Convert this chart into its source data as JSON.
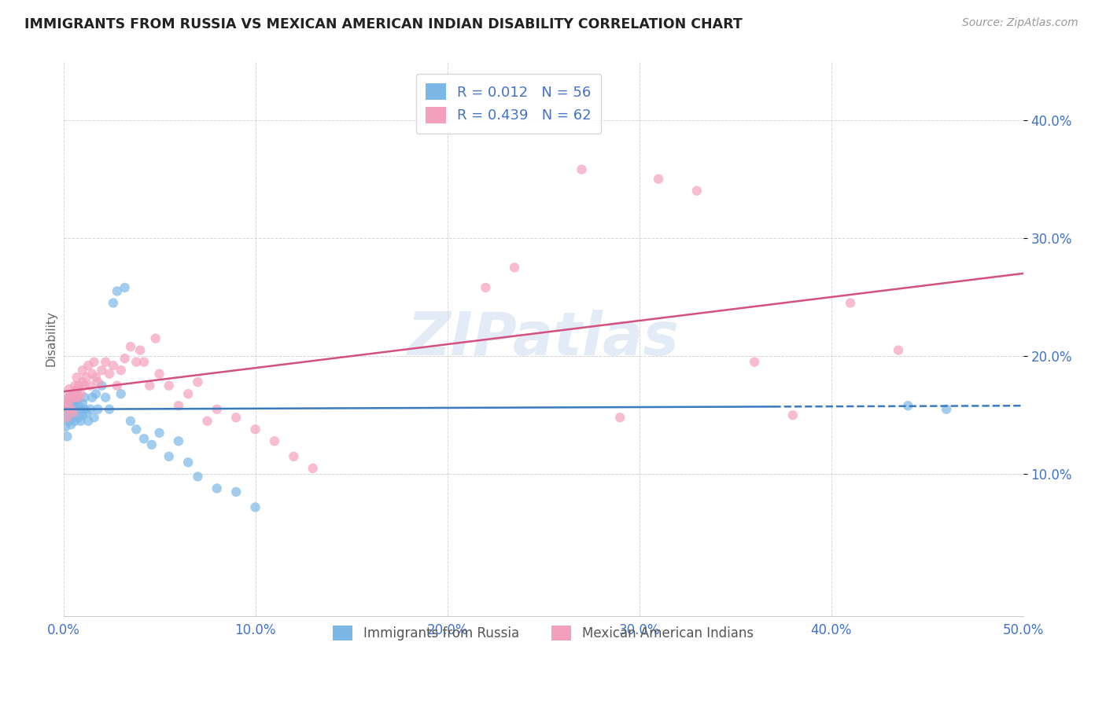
{
  "title": "IMMIGRANTS FROM RUSSIA VS MEXICAN AMERICAN INDIAN DISABILITY CORRELATION CHART",
  "source": "Source: ZipAtlas.com",
  "ylabel": "Disability",
  "xlim": [
    0.0,
    0.5
  ],
  "ylim": [
    -0.02,
    0.45
  ],
  "yticks": [
    0.1,
    0.2,
    0.3,
    0.4
  ],
  "ytick_labels": [
    "10.0%",
    "20.0%",
    "30.0%",
    "40.0%"
  ],
  "xticks": [
    0.0,
    0.1,
    0.2,
    0.3,
    0.4,
    0.5
  ],
  "xtick_labels": [
    "0.0%",
    "10.0%",
    "20.0%",
    "30.0%",
    "40.0%",
    "50.0%"
  ],
  "blue_R": 0.012,
  "blue_N": 56,
  "pink_R": 0.439,
  "pink_N": 62,
  "blue_color": "#7bb8e8",
  "pink_color": "#f4a0bc",
  "blue_line_color": "#3a7abf",
  "pink_line_color": "#d45080",
  "watermark": "ZIPatlas",
  "legend_label_blue": "Immigrants from Russia",
  "legend_label_pink": "Mexican American Indians",
  "blue_line_x0": 0.0,
  "blue_line_x1": 0.5,
  "blue_line_y0": 0.155,
  "blue_line_y1": 0.158,
  "pink_line_x0": 0.0,
  "pink_line_x1": 0.5,
  "pink_line_y0": 0.17,
  "pink_line_y1": 0.27,
  "blue_scatter_x": [
    0.001,
    0.001,
    0.002,
    0.002,
    0.002,
    0.003,
    0.003,
    0.003,
    0.004,
    0.004,
    0.004,
    0.005,
    0.005,
    0.005,
    0.006,
    0.006,
    0.006,
    0.007,
    0.007,
    0.007,
    0.008,
    0.008,
    0.009,
    0.009,
    0.01,
    0.01,
    0.011,
    0.011,
    0.012,
    0.013,
    0.014,
    0.015,
    0.016,
    0.017,
    0.018,
    0.02,
    0.022,
    0.024,
    0.026,
    0.028,
    0.03,
    0.032,
    0.035,
    0.038,
    0.042,
    0.046,
    0.05,
    0.055,
    0.06,
    0.065,
    0.07,
    0.08,
    0.09,
    0.1,
    0.44,
    0.46
  ],
  "blue_scatter_y": [
    0.14,
    0.155,
    0.132,
    0.148,
    0.16,
    0.145,
    0.155,
    0.165,
    0.15,
    0.142,
    0.158,
    0.148,
    0.155,
    0.162,
    0.145,
    0.158,
    0.168,
    0.155,
    0.162,
    0.17,
    0.148,
    0.158,
    0.145,
    0.155,
    0.15,
    0.16,
    0.155,
    0.165,
    0.152,
    0.145,
    0.155,
    0.165,
    0.148,
    0.168,
    0.155,
    0.175,
    0.165,
    0.155,
    0.245,
    0.255,
    0.168,
    0.258,
    0.145,
    0.138,
    0.13,
    0.125,
    0.135,
    0.115,
    0.128,
    0.11,
    0.098,
    0.088,
    0.085,
    0.072,
    0.158,
    0.155
  ],
  "pink_scatter_x": [
    0.001,
    0.001,
    0.002,
    0.002,
    0.003,
    0.003,
    0.004,
    0.004,
    0.005,
    0.005,
    0.006,
    0.006,
    0.007,
    0.007,
    0.008,
    0.008,
    0.009,
    0.01,
    0.01,
    0.011,
    0.012,
    0.013,
    0.014,
    0.015,
    0.016,
    0.017,
    0.018,
    0.02,
    0.022,
    0.024,
    0.026,
    0.028,
    0.03,
    0.032,
    0.035,
    0.038,
    0.04,
    0.042,
    0.045,
    0.048,
    0.05,
    0.055,
    0.06,
    0.065,
    0.07,
    0.075,
    0.08,
    0.09,
    0.1,
    0.11,
    0.12,
    0.13,
    0.22,
    0.235,
    0.27,
    0.29,
    0.31,
    0.33,
    0.36,
    0.38,
    0.41,
    0.435
  ],
  "pink_scatter_y": [
    0.155,
    0.165,
    0.148,
    0.158,
    0.162,
    0.172,
    0.155,
    0.165,
    0.152,
    0.168,
    0.175,
    0.165,
    0.172,
    0.182,
    0.165,
    0.175,
    0.168,
    0.178,
    0.188,
    0.175,
    0.182,
    0.192,
    0.175,
    0.185,
    0.195,
    0.182,
    0.178,
    0.188,
    0.195,
    0.185,
    0.192,
    0.175,
    0.188,
    0.198,
    0.208,
    0.195,
    0.205,
    0.195,
    0.175,
    0.215,
    0.185,
    0.175,
    0.158,
    0.168,
    0.178,
    0.145,
    0.155,
    0.148,
    0.138,
    0.128,
    0.115,
    0.105,
    0.258,
    0.275,
    0.358,
    0.148,
    0.35,
    0.34,
    0.195,
    0.15,
    0.245,
    0.205
  ]
}
